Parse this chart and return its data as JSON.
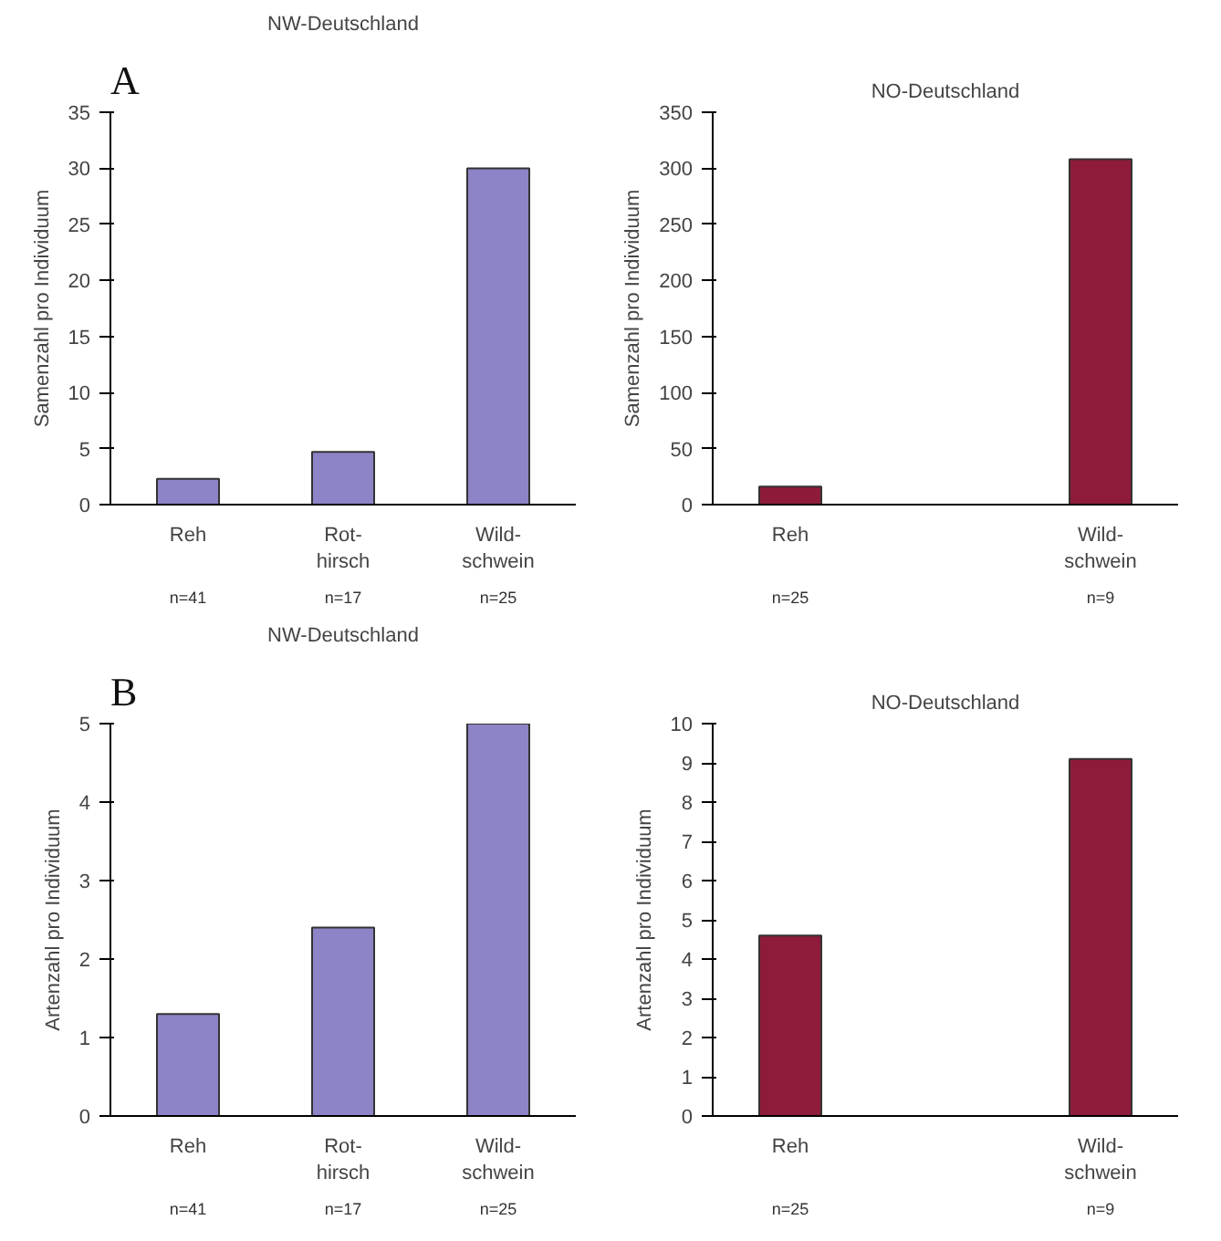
{
  "chart_data": [
    {
      "type": "bar",
      "title": "NW-Deutschland",
      "ylabel": "Samenzahl pro Individuum",
      "categories": [
        "Reh",
        "Rot-\nhirsch",
        "Wild-\nschwein"
      ],
      "values": [
        2.3,
        4.7,
        30
      ],
      "color": "#8c84c6",
      "ylim": [
        0,
        35
      ],
      "yticks": [
        0,
        5,
        10,
        15,
        20,
        25,
        30,
        35
      ],
      "grid": false,
      "annotations": [
        "A",
        "n=41",
        "n=17",
        "n=25"
      ]
    },
    {
      "type": "bar",
      "title": "NO-Deutschland",
      "ylabel": "Samenzahl pro Individuum",
      "categories": [
        "Reh",
        null,
        "Wild-\nschwein"
      ],
      "values": [
        16,
        null,
        308
      ],
      "color": "#8e1b3a",
      "ylim": [
        0,
        350
      ],
      "yticks": [
        0,
        50,
        100,
        150,
        200,
        250,
        300,
        350
      ],
      "grid": false,
      "annotations": [
        "n=25",
        "n=9"
      ]
    },
    {
      "type": "bar",
      "title": "NW-Deutschland",
      "ylabel": "Artenzahl pro Individuum",
      "categories": [
        "Reh",
        "Rot-\nhirsch",
        "Wild-\nschwein"
      ],
      "values": [
        1.3,
        2.4,
        5
      ],
      "color": "#8c84c6",
      "ylim": [
        0,
        5
      ],
      "yticks": [
        0,
        1,
        2,
        3,
        4,
        5
      ],
      "grid": false,
      "annotations": [
        "B",
        "n=41",
        "n=17",
        "n=25"
      ]
    },
    {
      "type": "bar",
      "title": "NO-Deutschland",
      "ylabel": "Artenzahl pro Individuum",
      "categories": [
        "Reh",
        null,
        "Wild-\nschwein"
      ],
      "values": [
        4.6,
        null,
        9.1
      ],
      "color": "#8e1b3a",
      "ylim": [
        0,
        10
      ],
      "yticks": [
        0,
        1,
        2,
        3,
        4,
        5,
        6,
        7,
        8,
        9,
        10
      ],
      "grid": false,
      "annotations": [
        "n=25",
        "n=9"
      ]
    }
  ]
}
